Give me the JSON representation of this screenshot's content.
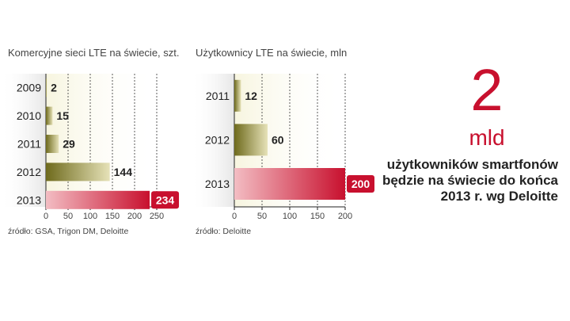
{
  "colors": {
    "bar_olive_dark": "#6e6a1c",
    "bar_olive_light": "#e6e2b8",
    "bar_red_dark": "#c8102e",
    "bar_red_light": "#f3bdc3",
    "highlight": "#c8102e",
    "panel_bg": "#f7f5df",
    "label_bg": "#e9e9e9"
  },
  "chart_data": [
    {
      "type": "bar",
      "orientation": "horizontal",
      "title": "Komercyjne sieci LTE na świecie, szt.",
      "categories": [
        "2009",
        "2010",
        "2011",
        "2012",
        "2013"
      ],
      "values": [
        2,
        15,
        29,
        144,
        234
      ],
      "value_labels": [
        "2",
        "15",
        "29",
        "144",
        "234"
      ],
      "highlight_index": 4,
      "xlim": [
        0,
        250
      ],
      "ticks": [
        0,
        50,
        100,
        150,
        200,
        250
      ],
      "tick_labels": [
        "0",
        "50",
        "100",
        "150",
        "200",
        "250"
      ],
      "grid": true,
      "source": "źródło: GSA, Trigon DM, Deloitte"
    },
    {
      "type": "bar",
      "orientation": "horizontal",
      "title": "Użytkownicy LTE na świecie, mln",
      "categories": [
        "2011",
        "2012",
        "2013"
      ],
      "values": [
        12,
        60,
        200
      ],
      "value_labels": [
        "12",
        "60",
        "200"
      ],
      "highlight_index": 2,
      "xlim": [
        0,
        200
      ],
      "ticks": [
        0,
        50,
        100,
        150,
        200
      ],
      "tick_labels": [
        "0",
        "50",
        "100",
        "150",
        "200"
      ],
      "grid": true,
      "source": "źródło: Deloitte"
    }
  ],
  "callout": {
    "number": "2",
    "unit": "mld",
    "text_lines": [
      "użytkowników smartfonów",
      "będzie na świecie do końca",
      "2013 r. wg Deloitte"
    ]
  }
}
